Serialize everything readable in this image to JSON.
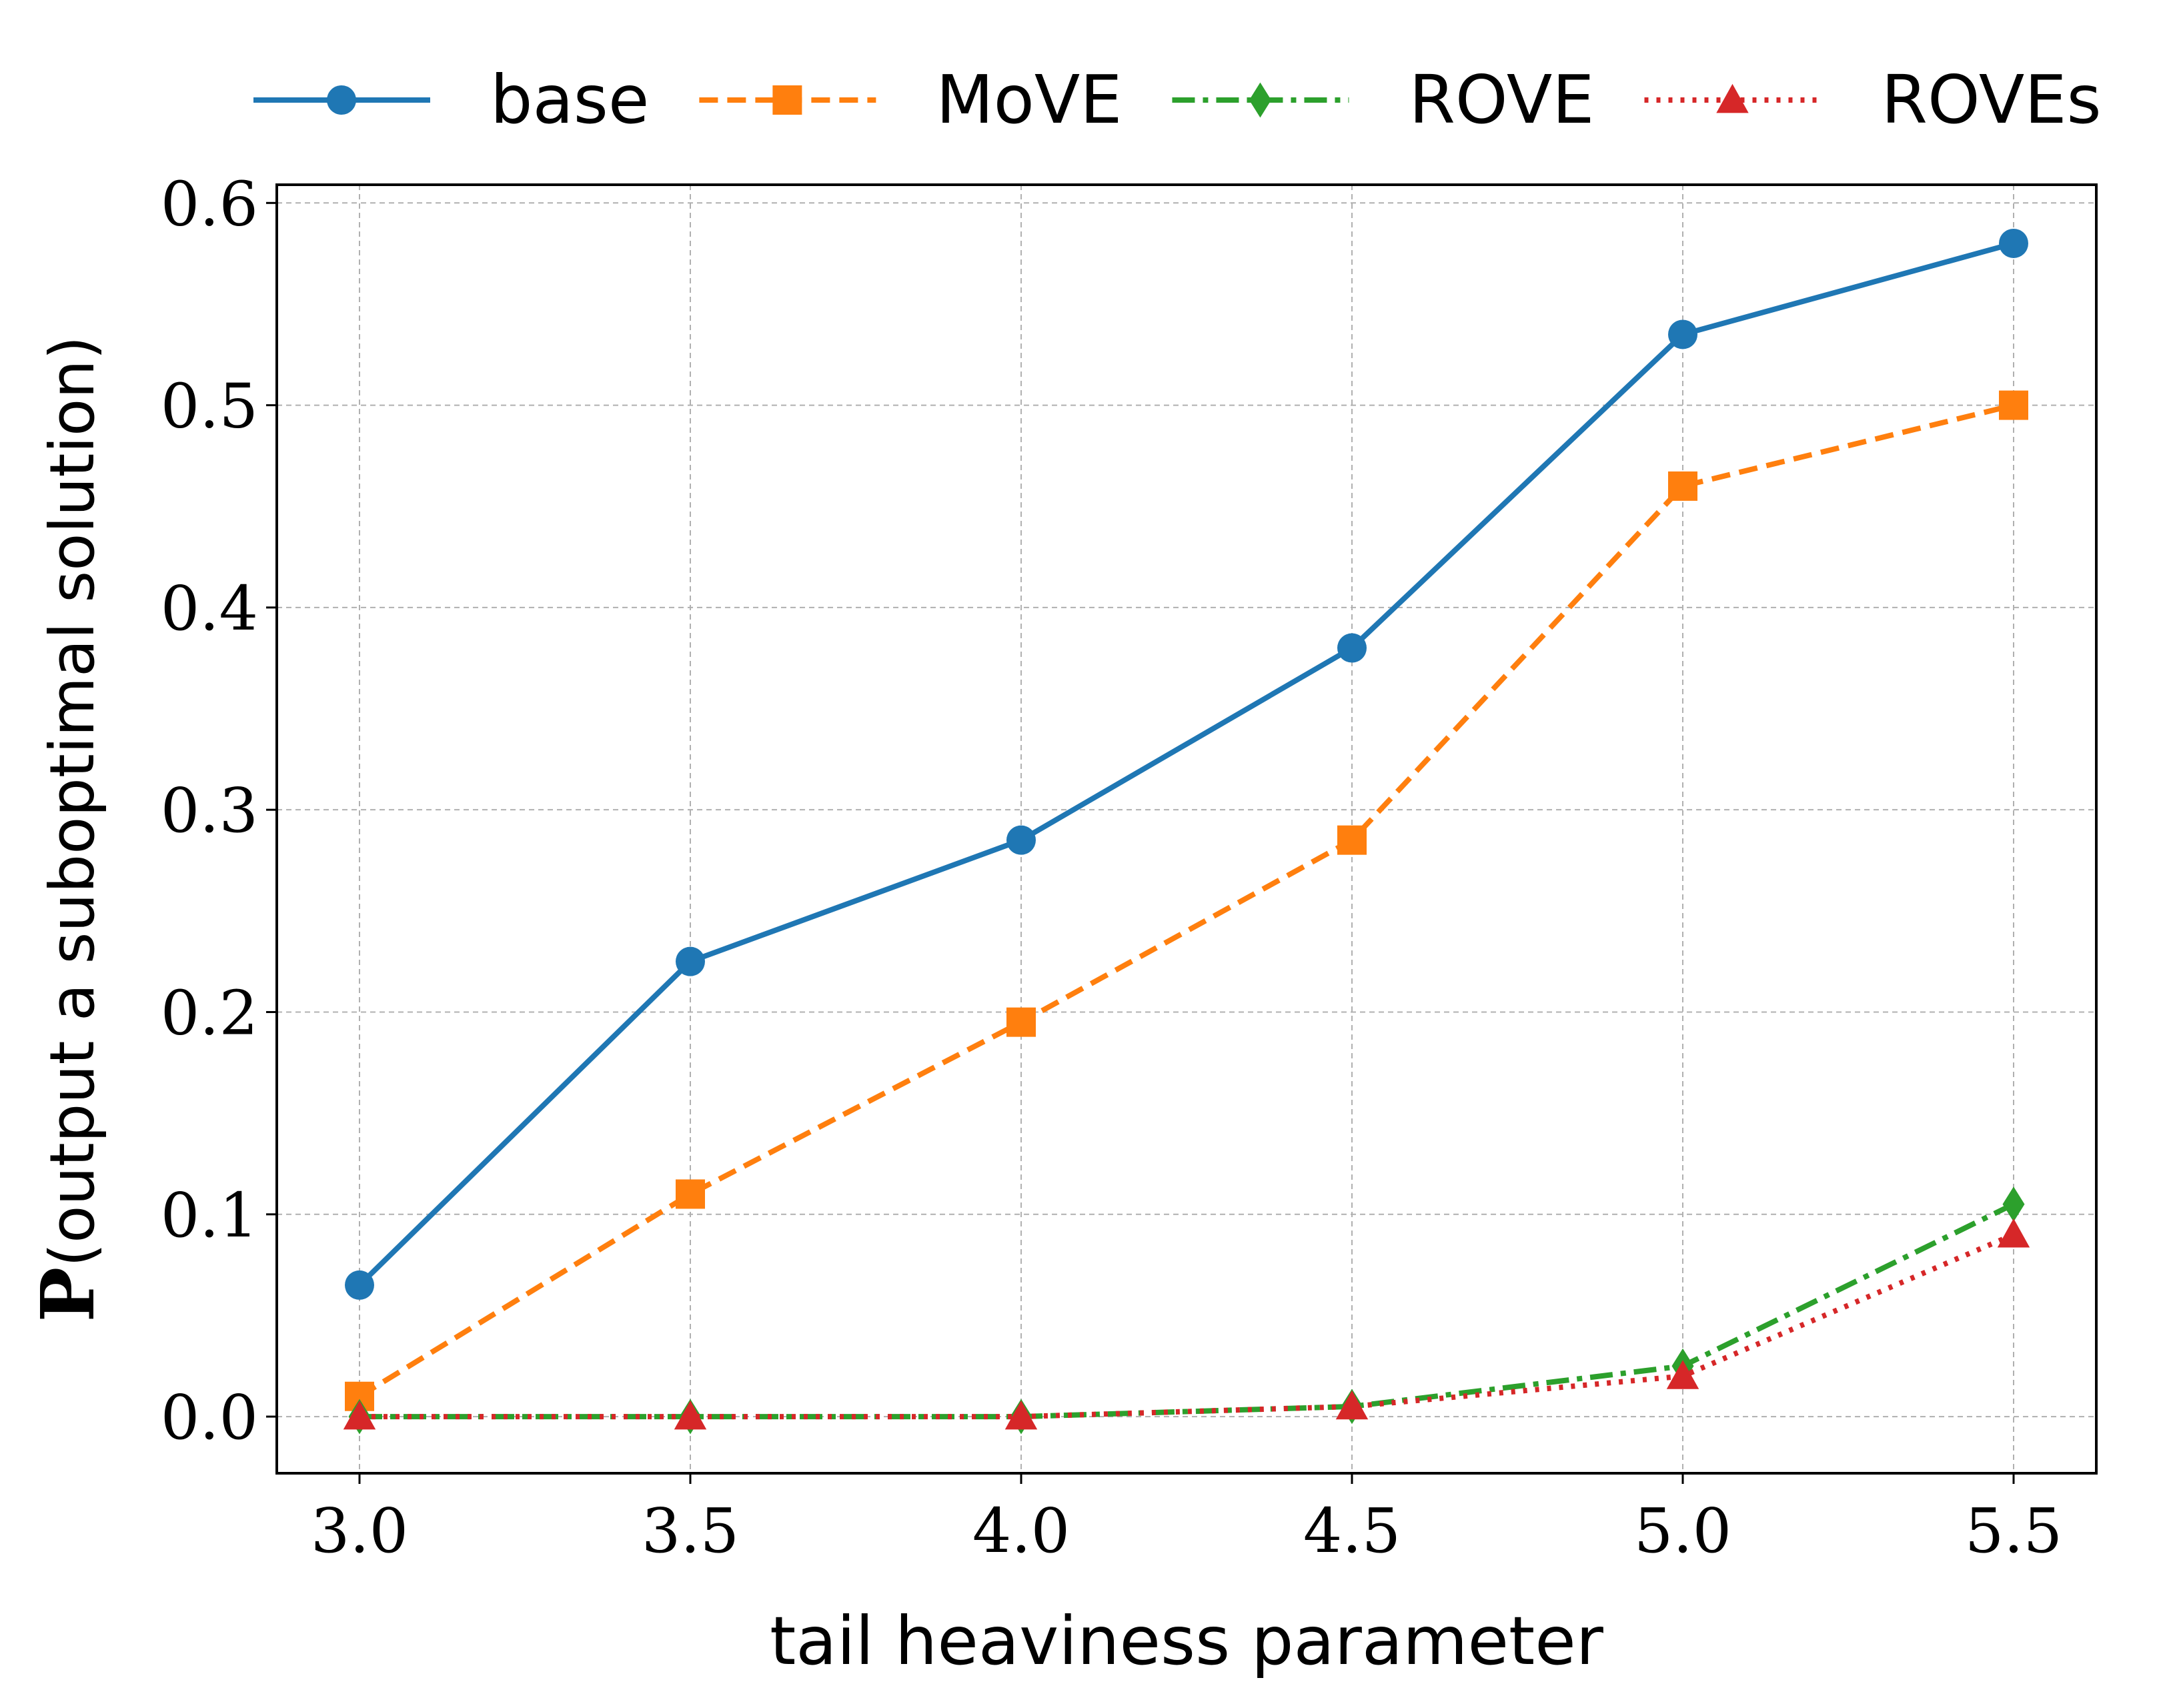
{
  "chart_data": {
    "type": "line",
    "x": [
      3.0,
      3.5,
      4.0,
      4.5,
      5.0,
      5.5
    ],
    "series": [
      {
        "name": "base",
        "color": "#1f77b4",
        "marker": "circle",
        "linestyle": "solid",
        "values": [
          0.065,
          0.225,
          0.285,
          0.38,
          0.535,
          0.58
        ]
      },
      {
        "name": "MoVE",
        "color": "#ff7f0e",
        "marker": "square",
        "linestyle": "dashed",
        "values": [
          0.01,
          0.11,
          0.195,
          0.285,
          0.46,
          0.5
        ]
      },
      {
        "name": "ROVE",
        "color": "#2ca02c",
        "marker": "diamond",
        "linestyle": "dashdot",
        "values": [
          0.0,
          0.0,
          0.0,
          0.005,
          0.025,
          0.105
        ]
      },
      {
        "name": "ROVEs",
        "color": "#d62728",
        "marker": "triangle",
        "linestyle": "dotted",
        "values": [
          0.0,
          0.0,
          0.0,
          0.005,
          0.02,
          0.09
        ]
      }
    ],
    "xlabel": "tail heaviness parameter",
    "ylabel_prefix": "P",
    "ylabel": "(output a suboptimal solution)",
    "x_ticks": [
      "3.0",
      "3.5",
      "4.0",
      "4.5",
      "5.0",
      "5.5"
    ],
    "y_ticks": [
      "0.0",
      "0.1",
      "0.2",
      "0.3",
      "0.4",
      "0.5",
      "0.6"
    ],
    "x_tick_values": [
      3.0,
      3.5,
      4.0,
      4.5,
      5.0,
      5.5
    ],
    "y_tick_values": [
      0.0,
      0.1,
      0.2,
      0.3,
      0.4,
      0.5,
      0.6
    ],
    "xlim": [
      2.875,
      5.625
    ],
    "ylim": [
      -0.028,
      0.609
    ],
    "grid": true,
    "legend": "top"
  }
}
